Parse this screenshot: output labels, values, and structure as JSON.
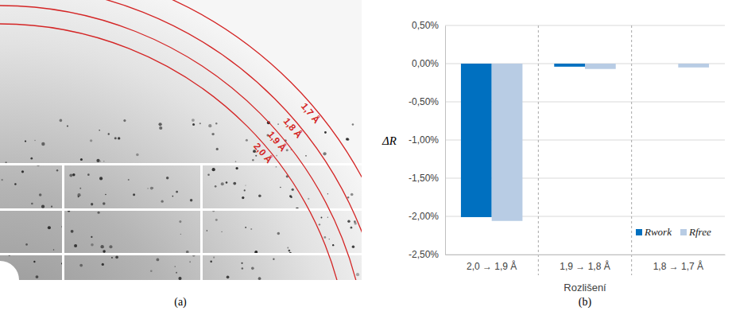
{
  "chart_data": {
    "type": "bar",
    "categories": [
      "2,0 → 1,9 Å",
      "1,9 → 1,8 Å",
      "1,8 → 1,7 Å"
    ],
    "series": [
      {
        "name": "Rwork",
        "color": "#0070c0",
        "values": [
          -2.01,
          -0.04,
          0
        ]
      },
      {
        "name": "Rfree",
        "color": "#b8cce4",
        "values": [
          -2.06,
          -0.07,
          -0.05
        ]
      }
    ],
    "ylim": [
      -2.5,
      0.5
    ],
    "yticks": [
      {
        "value": -2.5,
        "label": "-2,50%"
      },
      {
        "value": -2,
        "label": "-2,00%"
      },
      {
        "value": -1.5,
        "label": "-1,50%"
      },
      {
        "value": -1,
        "label": "-1,00%"
      },
      {
        "value": -0.5,
        "label": "-0,50%"
      },
      {
        "value": 0,
        "label": "0,00%"
      },
      {
        "value": 0.5,
        "label": "0,50%"
      }
    ],
    "y_label": "ΔR",
    "x_label": "Rozlišení",
    "grid": true,
    "legend": "lower right",
    "caption": "(b)"
  },
  "panel_a": {
    "caption": "(a)",
    "rings": [
      "2,0 Å",
      "1,9 Å",
      "1,8 Å",
      "1,7 Å"
    ]
  }
}
